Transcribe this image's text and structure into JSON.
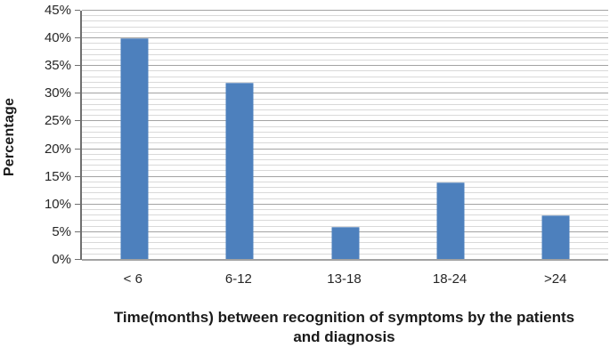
{
  "chart_data": {
    "type": "bar",
    "categories": [
      "< 6",
      "6-12",
      "13-18",
      "18-24",
      ">24"
    ],
    "values": [
      40,
      32,
      6,
      14,
      8
    ],
    "value_unit": "%",
    "title": "",
    "xlabel": "Time(months) between recognition of symptoms by the patients and diagnosis",
    "xlabel_lines": [
      "Time(months) between recognition of symptoms by the patients",
      "and diagnosis"
    ],
    "ylabel": "Percentage",
    "ylim": [
      0,
      45
    ],
    "y_major_step": 5,
    "y_minor_step": 1,
    "y_tick_labels": [
      "0%",
      "5%",
      "10%",
      "15%",
      "20%",
      "25%",
      "30%",
      "35%",
      "40%",
      "45%"
    ],
    "grid": "horizontal, minor every 1%, major every 5%",
    "legend": "none",
    "colors": {
      "bar": "#4d80bd",
      "grid_minor": "#d9d9d9",
      "grid_major": "#a3a3a3",
      "axis": "#6f6f6f",
      "text": "#262626"
    }
  }
}
